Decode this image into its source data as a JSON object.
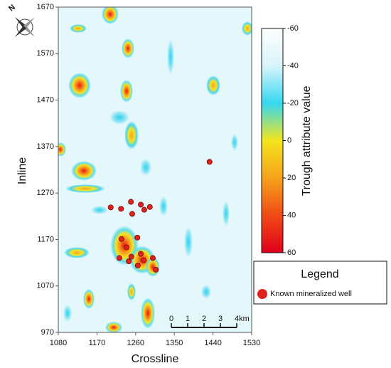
{
  "chart_data": {
    "type": "scatter",
    "x_label": "Crossline",
    "y_label": "Inline",
    "xlim": [
      1080,
      1530
    ],
    "xticks": [
      1080,
      1170,
      1260,
      1350,
      1440,
      1530
    ],
    "ylim": [
      970,
      1670
    ],
    "yticks": [
      970,
      1070,
      1170,
      1270,
      1370,
      1470,
      1570,
      1670
    ],
    "legend_title": "Legend",
    "series": [
      {
        "name": "Known mineralized well",
        "color": "#e0201b",
        "x": [
          1202,
          1226,
          1249,
          1272,
          1293,
          1252,
          1280,
          1227,
          1239,
          1222,
          1264,
          1244,
          1250,
          1272,
          1279,
          1265,
          1300,
          1307,
          1432
        ],
        "y": [
          1239,
          1236,
          1251,
          1245,
          1240,
          1225,
          1234,
          1171,
          1153,
          1130,
          1174,
          1123,
          1133,
          1139,
          1125,
          1114,
          1130,
          1105,
          1337
        ]
      }
    ],
    "colorbar": {
      "title": "Trough attribute value",
      "lim": [
        -60,
        60
      ],
      "ticks": [
        -60,
        -40,
        -20,
        0,
        20,
        40,
        60
      ],
      "colors": [
        "#ffffff",
        "#d8f4fb",
        "#35d8f0",
        "#f3e51c",
        "#f7a21b",
        "#f04a16",
        "#e0001a"
      ]
    },
    "scale_bar": {
      "ticks": [
        0,
        1,
        2,
        3,
        {
          "value": 4,
          "label": "4km"
        }
      ]
    },
    "north_label": "N"
  }
}
